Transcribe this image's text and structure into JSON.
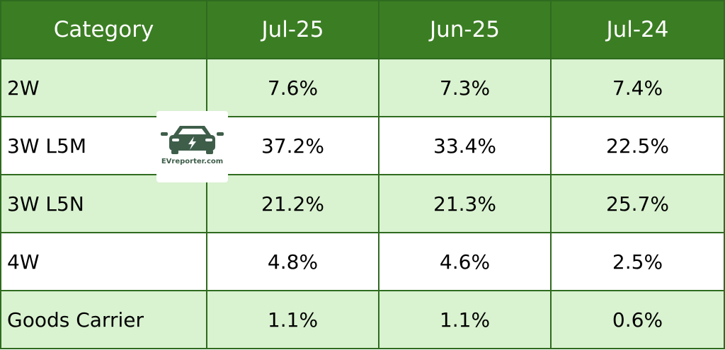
{
  "chart_data": {
    "type": "table",
    "columns": [
      "Category",
      "Jul-25",
      "Jun-25",
      "Jul-24"
    ],
    "rows": [
      {
        "category": "2W",
        "values": [
          "7.6%",
          "7.3%",
          "7.4%"
        ]
      },
      {
        "category": "3W L5M",
        "values": [
          "37.2%",
          "33.4%",
          "22.5%"
        ]
      },
      {
        "category": "3W L5N",
        "values": [
          "21.2%",
          "21.3%",
          "25.7%"
        ]
      },
      {
        "category": "4W",
        "values": [
          "4.8%",
          "4.6%",
          "2.5%"
        ]
      },
      {
        "category": "Goods Carrier",
        "values": [
          "1.1%",
          "1.1%",
          "0.6%"
        ]
      }
    ]
  },
  "watermark": {
    "text": "EVreporter.com",
    "icon": "ev-car-bolt-icon",
    "color": "#3e5e4a"
  },
  "colors": {
    "header_bg": "#3b7d23",
    "header_text": "#ffffff",
    "row_alt_bg": "#d9f2d0",
    "row_bg": "#ffffff",
    "border": "#2f6b1f"
  }
}
